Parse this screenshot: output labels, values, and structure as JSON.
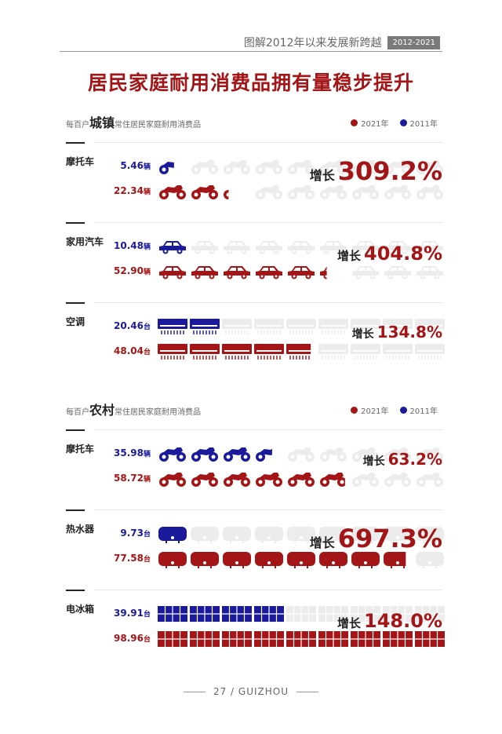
{
  "header": {
    "caption": "图解2012年以来发展新跨越",
    "range": "2012-2021"
  },
  "title": "居民家庭耐用消费品拥有量稳步提升",
  "colors": {
    "y2021": "#a31516",
    "y2011": "#1a1a9a",
    "faint": "#ececec"
  },
  "legend": {
    "label_2021": "2021年",
    "label_2011": "2011年"
  },
  "footer": "27 / GUIZHOU",
  "chart_data": {
    "type": "pictograph",
    "sections": [
      {
        "header": {
          "pre": "每百户",
          "area": "城镇",
          "post": "常住居民家庭耐用消费品"
        },
        "items": [
          {
            "label": "摩托车",
            "icon": "motorcycle-icon",
            "v2011": 5.46,
            "v2011_text": "5.46",
            "v2021": 22.34,
            "v2021_text": "22.34",
            "unit": "辆",
            "growth": "309.2%",
            "growth_label": "增长",
            "growth_emphasis": "large"
          },
          {
            "label": "家用汽车",
            "icon": "car-icon",
            "v2011": 10.48,
            "v2011_text": "10.48",
            "v2021": 52.9,
            "v2021_text": "52.90",
            "unit": "辆",
            "growth": "404.8%",
            "growth_label": "增长",
            "growth_emphasis": "medium"
          },
          {
            "label": "空调",
            "icon": "air-conditioner-icon",
            "v2011": 20.46,
            "v2011_text": "20.46",
            "v2021": 48.04,
            "v2021_text": "48.04",
            "unit": "台",
            "growth": "134.8%",
            "growth_label": "增长",
            "growth_emphasis": "small"
          }
        ]
      },
      {
        "header": {
          "pre": "每百户",
          "area": "农村",
          "post": "常住居民家庭耐用消费品"
        },
        "items": [
          {
            "label": "摩托车",
            "icon": "motorcycle-icon",
            "v2011": 35.98,
            "v2011_text": "35.98",
            "v2021": 58.72,
            "v2021_text": "58.72",
            "unit": "辆",
            "growth": "63.2%",
            "growth_label": "增长",
            "growth_emphasis": "small"
          },
          {
            "label": "热水器",
            "icon": "water-heater-icon",
            "v2011": 9.73,
            "v2011_text": "9.73",
            "v2021": 77.58,
            "v2021_text": "77.58",
            "unit": "台",
            "growth": "697.3%",
            "growth_label": "增长",
            "growth_emphasis": "large"
          },
          {
            "label": "电冰箱",
            "icon": "refrigerator-icon",
            "v2011": 39.91,
            "v2011_text": "39.91",
            "v2021": 98.96,
            "v2021_text": "98.96",
            "unit": "台",
            "growth": "148.0%",
            "growth_label": "增长",
            "growth_emphasis": "medium"
          }
        ]
      }
    ]
  }
}
